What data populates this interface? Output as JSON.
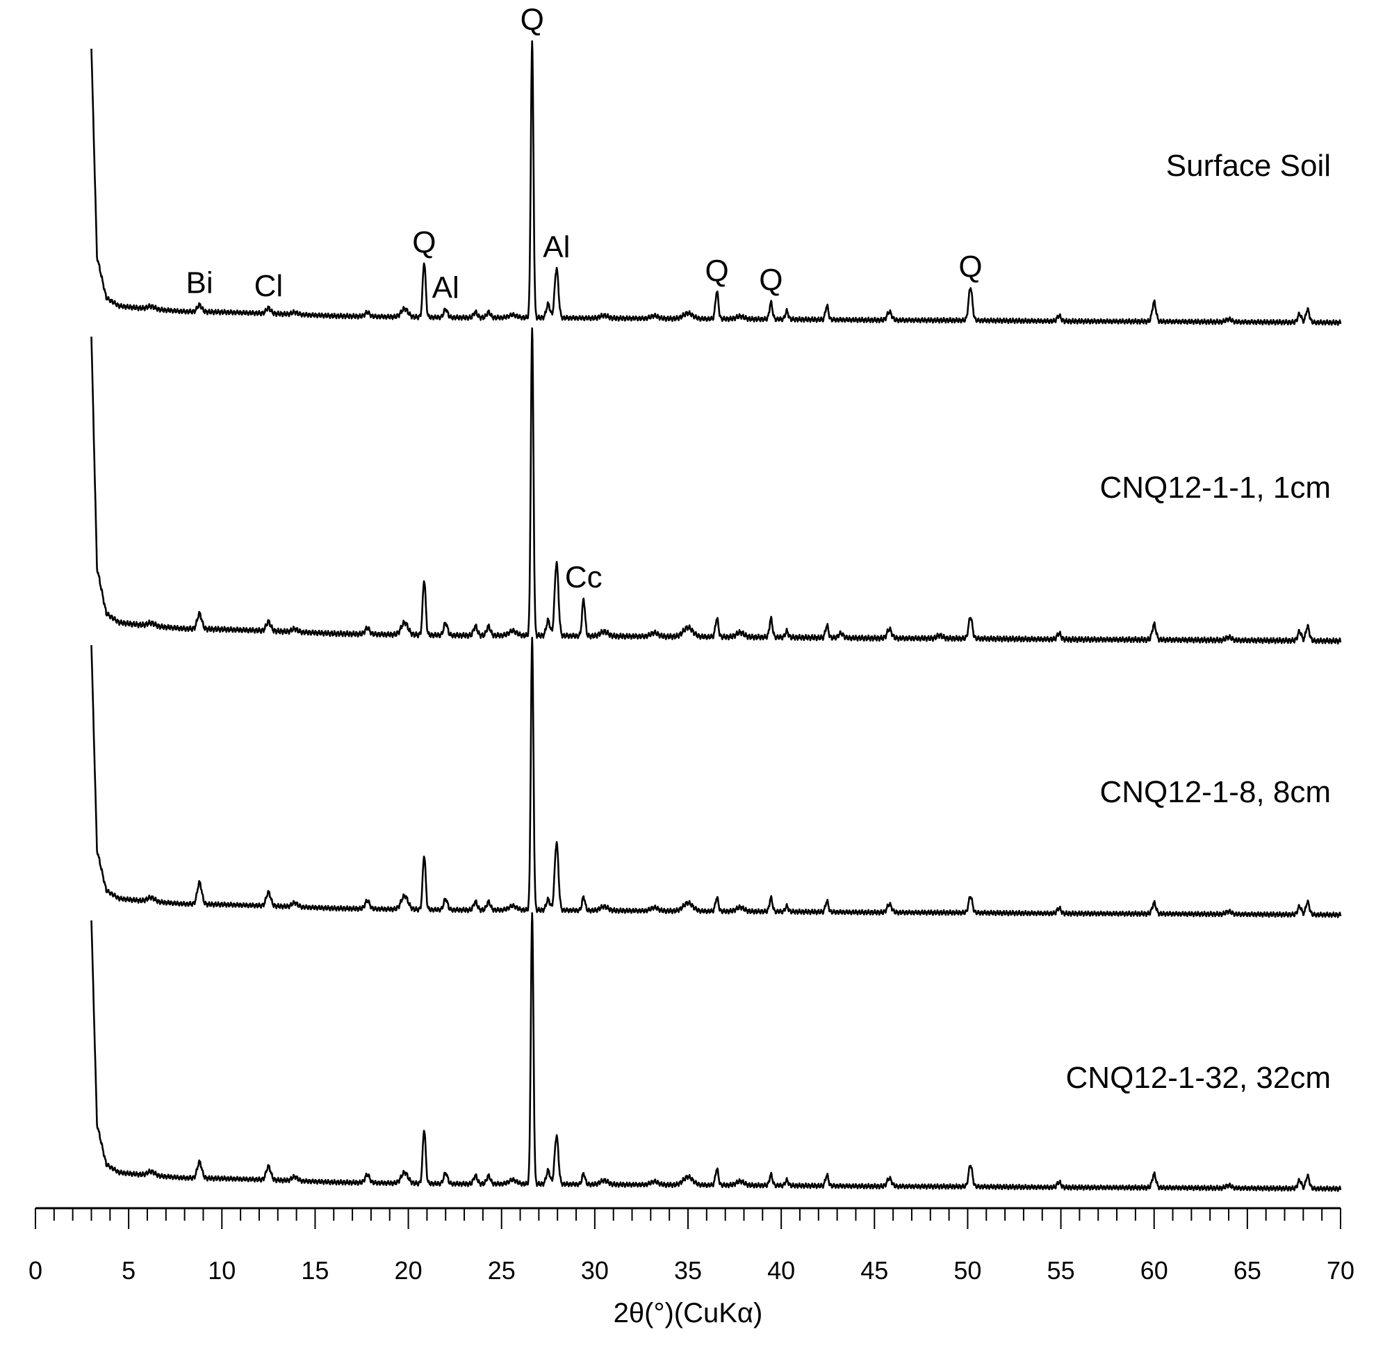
{
  "chart_data": {
    "type": "line",
    "xlabel": "2θ(°)(CuKα)",
    "xlim": [
      0,
      70
    ],
    "x_ticks": [
      "0",
      "5",
      "10",
      "15",
      "20",
      "25",
      "30",
      "35",
      "40",
      "45",
      "50",
      "55",
      "60",
      "65",
      "70"
    ],
    "minor_tick_step": 1,
    "y_axis_shown": false,
    "grid": false,
    "series": [
      {
        "name": "Surface Soil",
        "start_x": 3.0,
        "end_x": 70,
        "baseline": [
          [
            3.0,
            100
          ],
          [
            3.3,
            24
          ],
          [
            3.8,
            9
          ],
          [
            4.5,
            6
          ],
          [
            6,
            5
          ],
          [
            8,
            4
          ],
          [
            10,
            3.8
          ],
          [
            13,
            3.2
          ],
          [
            16,
            2.4
          ],
          [
            18,
            2.2
          ],
          [
            20,
            2
          ],
          [
            23,
            1.8
          ],
          [
            26,
            1.8
          ],
          [
            30,
            1.6
          ],
          [
            35,
            1.4
          ],
          [
            40,
            1.2
          ],
          [
            45,
            0.9
          ],
          [
            50,
            0.8
          ],
          [
            55,
            0.5
          ],
          [
            60,
            0.4
          ],
          [
            65,
            0.2
          ],
          [
            70,
            0
          ]
        ],
        "peaks": [
          [
            6.2,
            1,
            0.2
          ],
          [
            8.8,
            2.5,
            0.12
          ],
          [
            12.5,
            2,
            0.12
          ],
          [
            13.9,
            0.8,
            0.15
          ],
          [
            17.8,
            1.5,
            0.12
          ],
          [
            19.8,
            3,
            0.18
          ],
          [
            20.85,
            20,
            0.08
          ],
          [
            22.0,
            3,
            0.1
          ],
          [
            23.6,
            2,
            0.1
          ],
          [
            24.3,
            2,
            0.1
          ],
          [
            25.6,
            1,
            0.2
          ],
          [
            26.64,
            100,
            0.07
          ],
          [
            27.5,
            5,
            0.1
          ],
          [
            27.95,
            18,
            0.1
          ],
          [
            30.5,
            1,
            0.2
          ],
          [
            33.2,
            1,
            0.2
          ],
          [
            35.0,
            2,
            0.25
          ],
          [
            36.55,
            10,
            0.08
          ],
          [
            37.8,
            1,
            0.2
          ],
          [
            39.45,
            6,
            0.08
          ],
          [
            40.3,
            3,
            0.08
          ],
          [
            42.45,
            5,
            0.08
          ],
          [
            45.8,
            3,
            0.12
          ],
          [
            50.15,
            12,
            0.1
          ],
          [
            54.9,
            2,
            0.1
          ],
          [
            60.0,
            7,
            0.1
          ],
          [
            64.0,
            1,
            0.15
          ],
          [
            67.8,
            3,
            0.1
          ],
          [
            68.2,
            3.5,
            0.08
          ],
          [
            68.3,
            2,
            0.08
          ]
        ],
        "annotations": [
          {
            "label": "Bi",
            "x": 8.8
          },
          {
            "label": "Cl",
            "x": 12.5
          },
          {
            "label": "Q",
            "x": 20.85
          },
          {
            "label": "Al",
            "x": 22.0
          },
          {
            "label": "Q",
            "x": 26.64
          },
          {
            "label": "Al",
            "x": 27.95
          },
          {
            "label": "Q",
            "x": 36.55
          },
          {
            "label": "Q",
            "x": 39.45
          },
          {
            "label": "Q",
            "x": 50.15
          }
        ]
      },
      {
        "name": "CNQ12-1-1, 1cm",
        "start_x": 3.0,
        "end_x": 70,
        "baseline": [
          [
            3.0,
            100
          ],
          [
            3.3,
            24
          ],
          [
            3.8,
            9
          ],
          [
            4.5,
            6
          ],
          [
            6,
            5
          ],
          [
            8,
            4
          ],
          [
            10,
            3.8
          ],
          [
            13,
            3.2
          ],
          [
            16,
            2.4
          ],
          [
            18,
            2.2
          ],
          [
            20,
            2
          ],
          [
            23,
            1.8
          ],
          [
            26,
            1.8
          ],
          [
            30,
            1.6
          ],
          [
            35,
            1.4
          ],
          [
            40,
            1.2
          ],
          [
            45,
            0.9
          ],
          [
            50,
            0.8
          ],
          [
            55,
            0.5
          ],
          [
            60,
            0.4
          ],
          [
            65,
            0.2
          ],
          [
            70,
            0
          ]
        ],
        "peaks": [
          [
            6.2,
            1,
            0.2
          ],
          [
            8.8,
            5,
            0.12
          ],
          [
            12.5,
            3,
            0.12
          ],
          [
            13.9,
            1,
            0.15
          ],
          [
            17.8,
            2,
            0.12
          ],
          [
            19.8,
            4,
            0.18
          ],
          [
            20.85,
            18,
            0.08
          ],
          [
            22.0,
            4,
            0.1
          ],
          [
            23.6,
            3,
            0.1
          ],
          [
            24.3,
            3,
            0.1
          ],
          [
            25.6,
            1.5,
            0.2
          ],
          [
            26.64,
            100,
            0.07
          ],
          [
            27.5,
            5,
            0.1
          ],
          [
            27.95,
            24,
            0.1
          ],
          [
            29.4,
            12,
            0.08
          ],
          [
            30.5,
            1.5,
            0.2
          ],
          [
            33.2,
            1.2,
            0.2
          ],
          [
            35.0,
            3,
            0.25
          ],
          [
            36.55,
            6,
            0.08
          ],
          [
            37.8,
            1.5,
            0.2
          ],
          [
            39.45,
            6,
            0.08
          ],
          [
            40.3,
            2,
            0.08
          ],
          [
            42.45,
            4,
            0.08
          ],
          [
            43.2,
            1.5,
            0.12
          ],
          [
            45.8,
            3,
            0.12
          ],
          [
            48.5,
            1,
            0.15
          ],
          [
            50.15,
            7,
            0.1
          ],
          [
            54.9,
            2,
            0.1
          ],
          [
            60.0,
            5,
            0.1
          ],
          [
            64.0,
            1,
            0.15
          ],
          [
            67.8,
            3,
            0.1
          ],
          [
            68.2,
            3.5,
            0.08
          ],
          [
            68.3,
            2,
            0.08
          ]
        ],
        "annotations": [
          {
            "label": "Cc",
            "x": 29.4
          }
        ]
      },
      {
        "name": "CNQ12-1-8, 8cm",
        "start_x": 3.0,
        "end_x": 70,
        "baseline": [
          [
            3.0,
            100
          ],
          [
            3.3,
            24
          ],
          [
            3.8,
            9
          ],
          [
            4.5,
            6
          ],
          [
            6,
            5
          ],
          [
            8,
            4
          ],
          [
            10,
            3.8
          ],
          [
            13,
            3.2
          ],
          [
            16,
            2.4
          ],
          [
            18,
            2.2
          ],
          [
            20,
            2
          ],
          [
            23,
            1.8
          ],
          [
            26,
            1.8
          ],
          [
            30,
            1.6
          ],
          [
            35,
            1.4
          ],
          [
            40,
            1.2
          ],
          [
            45,
            0.9
          ],
          [
            50,
            0.8
          ],
          [
            55,
            0.5
          ],
          [
            60,
            0.4
          ],
          [
            65,
            0.2
          ],
          [
            70,
            0
          ]
        ],
        "peaks": [
          [
            6.2,
            1.5,
            0.2
          ],
          [
            8.8,
            8,
            0.12
          ],
          [
            12.5,
            5,
            0.12
          ],
          [
            13.9,
            1.5,
            0.15
          ],
          [
            17.8,
            3,
            0.12
          ],
          [
            19.8,
            5,
            0.18
          ],
          [
            20.85,
            20,
            0.08
          ],
          [
            22.0,
            4,
            0.1
          ],
          [
            23.6,
            3,
            0.1
          ],
          [
            24.3,
            3,
            0.1
          ],
          [
            25.6,
            1.5,
            0.2
          ],
          [
            26.64,
            100,
            0.07
          ],
          [
            27.5,
            4,
            0.1
          ],
          [
            27.95,
            25,
            0.1
          ],
          [
            29.4,
            5,
            0.08
          ],
          [
            30.5,
            1.5,
            0.2
          ],
          [
            33.2,
            1.2,
            0.2
          ],
          [
            35.0,
            3,
            0.25
          ],
          [
            36.55,
            5,
            0.08
          ],
          [
            37.8,
            1.5,
            0.2
          ],
          [
            39.45,
            5,
            0.08
          ],
          [
            40.3,
            2,
            0.08
          ],
          [
            42.45,
            4,
            0.08
          ],
          [
            45.8,
            3,
            0.12
          ],
          [
            50.15,
            6,
            0.1
          ],
          [
            54.9,
            2,
            0.1
          ],
          [
            60.0,
            4,
            0.1
          ],
          [
            64.0,
            1,
            0.15
          ],
          [
            67.8,
            3,
            0.1
          ],
          [
            68.2,
            3.5,
            0.08
          ],
          [
            68.3,
            2,
            0.08
          ]
        ],
        "annotations": []
      },
      {
        "name": "CNQ12-1-32, 32cm",
        "start_x": 3.0,
        "end_x": 70,
        "baseline": [
          [
            3.0,
            100
          ],
          [
            3.3,
            24
          ],
          [
            3.8,
            9
          ],
          [
            4.5,
            6
          ],
          [
            6,
            5
          ],
          [
            8,
            4
          ],
          [
            10,
            3.8
          ],
          [
            13,
            3.2
          ],
          [
            16,
            2.4
          ],
          [
            18,
            2.2
          ],
          [
            20,
            2
          ],
          [
            23,
            1.8
          ],
          [
            26,
            1.8
          ],
          [
            30,
            1.6
          ],
          [
            35,
            1.4
          ],
          [
            40,
            1.2
          ],
          [
            45,
            0.9
          ],
          [
            50,
            0.8
          ],
          [
            55,
            0.5
          ],
          [
            60,
            0.4
          ],
          [
            65,
            0.2
          ],
          [
            70,
            0
          ]
        ],
        "peaks": [
          [
            6.2,
            1.5,
            0.2
          ],
          [
            8.8,
            6,
            0.12
          ],
          [
            12.5,
            5,
            0.12
          ],
          [
            13.9,
            1.5,
            0.15
          ],
          [
            17.8,
            3,
            0.12
          ],
          [
            19.8,
            4,
            0.18
          ],
          [
            20.85,
            20,
            0.08
          ],
          [
            22.0,
            4,
            0.1
          ],
          [
            23.6,
            3,
            0.1
          ],
          [
            24.3,
            3,
            0.1
          ],
          [
            25.6,
            1.5,
            0.2
          ],
          [
            26.64,
            100,
            0.07
          ],
          [
            27.5,
            5,
            0.1
          ],
          [
            27.95,
            18,
            0.1
          ],
          [
            29.4,
            4,
            0.08
          ],
          [
            30.5,
            1.5,
            0.2
          ],
          [
            33.2,
            1.2,
            0.2
          ],
          [
            35.0,
            3,
            0.25
          ],
          [
            36.55,
            6,
            0.08
          ],
          [
            37.8,
            1.5,
            0.2
          ],
          [
            39.45,
            4,
            0.08
          ],
          [
            40.3,
            2,
            0.08
          ],
          [
            42.45,
            4,
            0.08
          ],
          [
            45.8,
            3,
            0.12
          ],
          [
            50.15,
            8,
            0.1
          ],
          [
            54.9,
            2,
            0.1
          ],
          [
            60.0,
            5,
            0.1
          ],
          [
            64.0,
            1,
            0.15
          ],
          [
            67.8,
            3,
            0.1
          ],
          [
            68.2,
            3.5,
            0.08
          ],
          [
            68.3,
            2,
            0.08
          ]
        ],
        "annotations": []
      }
    ]
  }
}
